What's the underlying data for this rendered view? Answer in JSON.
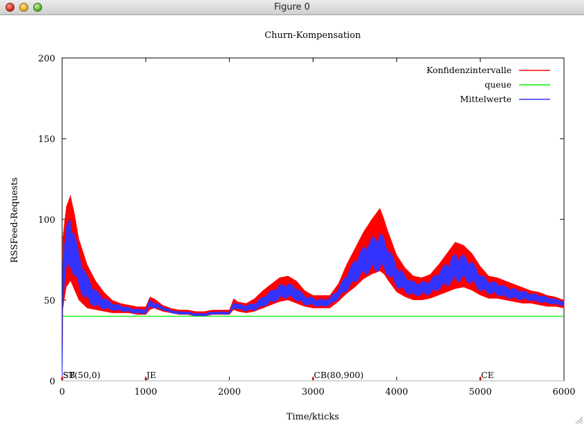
{
  "window": {
    "title": "Figure 0"
  },
  "chart_data": {
    "type": "line",
    "title": "Churn-Kompensation",
    "xlabel": "Time/kticks",
    "ylabel": "RSSFeed-Requests",
    "xlim": [
      0,
      6000
    ],
    "ylim": [
      0,
      200
    ],
    "xticks": [
      0,
      1000,
      2000,
      3000,
      4000,
      5000,
      6000
    ],
    "yticks": [
      0,
      50,
      100,
      150,
      200
    ],
    "grid": false,
    "legend_position": "top-right",
    "colors": {
      "Konfidenzintervalle": "#ff0000",
      "queue": "#00ee00",
      "Mittelwerte": "#3333ff",
      "events": "#cc0000"
    },
    "series": [
      {
        "name": "Konfidenzintervalle",
        "kind": "confidence-band",
        "x": [
          0,
          10,
          50,
          100,
          150,
          200,
          300,
          400,
          500,
          600,
          700,
          800,
          900,
          1000,
          1050,
          1100,
          1200,
          1300,
          1400,
          1500,
          1600,
          1700,
          1800,
          1900,
          2000,
          2050,
          2100,
          2200,
          2300,
          2400,
          2500,
          2600,
          2700,
          2800,
          2900,
          3000,
          3100,
          3200,
          3300,
          3400,
          3500,
          3600,
          3700,
          3800,
          3850,
          3900,
          4000,
          4100,
          4200,
          4300,
          4400,
          4500,
          4600,
          4700,
          4800,
          4900,
          5000,
          5100,
          5200,
          5300,
          5400,
          5500,
          5600,
          5700,
          5800,
          5900,
          6000
        ],
        "lower": [
          0,
          45,
          58,
          62,
          56,
          50,
          45,
          44,
          43,
          42,
          42,
          42,
          41,
          41,
          44,
          45,
          43,
          42,
          41,
          41,
          40,
          40,
          41,
          41,
          41,
          44,
          43,
          42,
          43,
          45,
          47,
          49,
          50,
          48,
          46,
          45,
          45,
          45,
          49,
          54,
          58,
          63,
          66,
          68,
          66,
          62,
          55,
          52,
          50,
          50,
          51,
          53,
          55,
          57,
          58,
          56,
          53,
          51,
          51,
          50,
          49,
          48,
          48,
          47,
          46,
          46,
          45
        ],
        "upper": [
          0,
          90,
          108,
          115,
          103,
          88,
          72,
          62,
          55,
          50,
          48,
          47,
          46,
          46,
          52,
          51,
          47,
          45,
          44,
          44,
          43,
          43,
          44,
          44,
          44,
          51,
          49,
          48,
          51,
          56,
          60,
          64,
          65,
          62,
          56,
          53,
          53,
          53,
          60,
          72,
          82,
          92,
          100,
          107,
          100,
          92,
          78,
          70,
          65,
          64,
          66,
          72,
          79,
          86,
          84,
          79,
          71,
          65,
          64,
          62,
          60,
          58,
          56,
          55,
          53,
          52,
          50
        ]
      },
      {
        "name": "queue",
        "x": [
          0,
          6000
        ],
        "values": [
          40,
          40
        ]
      },
      {
        "name": "Mittelwerte",
        "x": [
          0,
          10,
          50,
          100,
          150,
          200,
          300,
          400,
          500,
          600,
          700,
          800,
          900,
          1000,
          1050,
          1100,
          1200,
          1300,
          1400,
          1500,
          1600,
          1700,
          1800,
          1900,
          2000,
          2050,
          2100,
          2200,
          2300,
          2400,
          2500,
          2600,
          2700,
          2800,
          2900,
          3000,
          3100,
          3200,
          3300,
          3400,
          3500,
          3600,
          3700,
          3800,
          3850,
          3900,
          4000,
          4100,
          4200,
          4300,
          4400,
          4500,
          4600,
          4700,
          4800,
          4900,
          5000,
          5100,
          5200,
          5300,
          5400,
          5500,
          5600,
          5700,
          5800,
          5900,
          6000
        ],
        "values": [
          0,
          65,
          80,
          86,
          78,
          68,
          57,
          51,
          48,
          46,
          45,
          44,
          43,
          43,
          48,
          47,
          45,
          43,
          42,
          42,
          41,
          41,
          42,
          42,
          42,
          47,
          46,
          45,
          46,
          49,
          52,
          55,
          56,
          54,
          50,
          49,
          48,
          49,
          54,
          61,
          68,
          74,
          78,
          80,
          78,
          74,
          65,
          60,
          57,
          57,
          58,
          62,
          66,
          70,
          70,
          67,
          61,
          58,
          57,
          55,
          54,
          53,
          52,
          51,
          50,
          49,
          48
        ]
      }
    ],
    "events": [
      {
        "x": 0,
        "label": "SB"
      },
      {
        "x": 0,
        "label": "ST(50,0)"
      },
      {
        "x": 1000,
        "label": "JE"
      },
      {
        "x": 3000,
        "label": "CB(80,900)"
      },
      {
        "x": 5000,
        "label": "CE"
      }
    ]
  }
}
